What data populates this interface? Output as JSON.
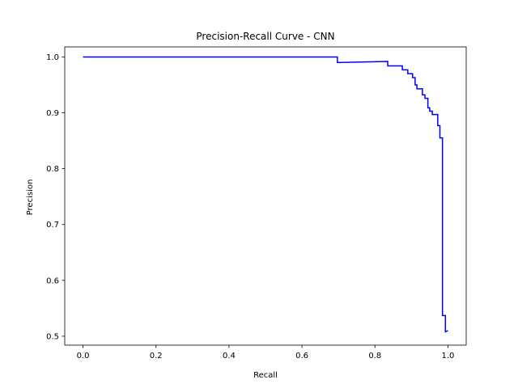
{
  "chart_data": {
    "type": "line",
    "title": "Precision-Recall Curve - CNN",
    "xlabel": "Recall",
    "ylabel": "Precision",
    "xlim": [
      -0.05,
      1.05
    ],
    "ylim": [
      0.484,
      1.018
    ],
    "xticks": [
      0.0,
      0.2,
      0.4,
      0.6,
      0.8,
      1.0
    ],
    "xtick_labels": [
      "0.0",
      "0.2",
      "0.4",
      "0.6",
      "0.8",
      "1.0"
    ],
    "yticks": [
      0.5,
      0.6,
      0.7,
      0.8,
      0.9,
      1.0
    ],
    "ytick_labels": [
      "0.5",
      "0.6",
      "0.7",
      "0.8",
      "0.9",
      "1.0"
    ],
    "grid": false,
    "legend": false,
    "series": [
      {
        "color": "#0000ff",
        "step": true,
        "points": [
          [
            0.0,
            1.0
          ],
          [
            0.697,
            1.0
          ],
          [
            0.697,
            0.99
          ],
          [
            0.835,
            0.992
          ],
          [
            0.835,
            0.984
          ],
          [
            0.875,
            0.984
          ],
          [
            0.875,
            0.977
          ],
          [
            0.89,
            0.977
          ],
          [
            0.89,
            0.97
          ],
          [
            0.903,
            0.97
          ],
          [
            0.903,
            0.963
          ],
          [
            0.91,
            0.963
          ],
          [
            0.91,
            0.95
          ],
          [
            0.915,
            0.95
          ],
          [
            0.915,
            0.943
          ],
          [
            0.93,
            0.943
          ],
          [
            0.93,
            0.932
          ],
          [
            0.937,
            0.932
          ],
          [
            0.937,
            0.926
          ],
          [
            0.945,
            0.926
          ],
          [
            0.945,
            0.909
          ],
          [
            0.95,
            0.909
          ],
          [
            0.95,
            0.903
          ],
          [
            0.957,
            0.903
          ],
          [
            0.957,
            0.897
          ],
          [
            0.972,
            0.897
          ],
          [
            0.972,
            0.877
          ],
          [
            0.978,
            0.877
          ],
          [
            0.978,
            0.855
          ],
          [
            0.985,
            0.855
          ],
          [
            0.985,
            0.537
          ],
          [
            0.993,
            0.537
          ],
          [
            0.993,
            0.508
          ],
          [
            1.0,
            0.51
          ]
        ]
      }
    ]
  }
}
